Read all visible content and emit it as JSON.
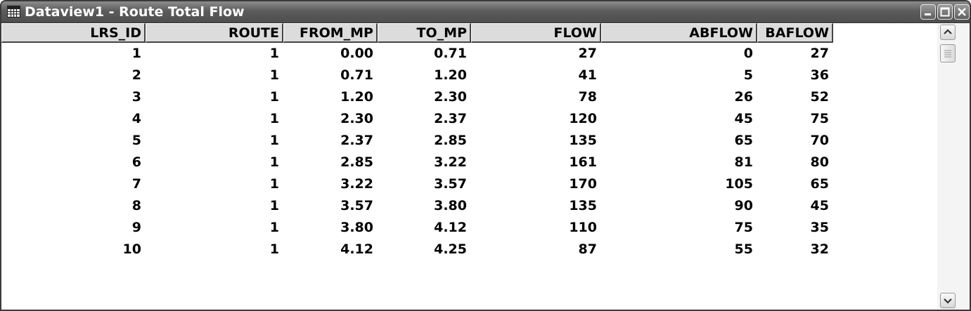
{
  "window": {
    "title": "Dataview1 - Route Total Flow",
    "icon": "table-icon",
    "controls": [
      "minimize-icon",
      "maximize-icon",
      "close-icon"
    ]
  },
  "table": {
    "columns": [
      "LRS_ID",
      "ROUTE",
      "FROM_MP",
      "TO_MP",
      "FLOW",
      "ABFLOW",
      "BAFLOW"
    ],
    "rows": [
      [
        "1",
        "1",
        "0.00",
        "0.71",
        "27",
        "0",
        "27"
      ],
      [
        "2",
        "1",
        "0.71",
        "1.20",
        "41",
        "5",
        "36"
      ],
      [
        "3",
        "1",
        "1.20",
        "2.30",
        "78",
        "26",
        "52"
      ],
      [
        "4",
        "1",
        "2.30",
        "2.37",
        "120",
        "45",
        "75"
      ],
      [
        "5",
        "1",
        "2.37",
        "2.85",
        "135",
        "65",
        "70"
      ],
      [
        "6",
        "1",
        "2.85",
        "3.22",
        "161",
        "81",
        "80"
      ],
      [
        "7",
        "1",
        "3.22",
        "3.57",
        "170",
        "105",
        "65"
      ],
      [
        "8",
        "1",
        "3.57",
        "3.80",
        "135",
        "90",
        "45"
      ],
      [
        "9",
        "1",
        "3.80",
        "4.12",
        "110",
        "75",
        "35"
      ],
      [
        "10",
        "1",
        "4.12",
        "4.25",
        "87",
        "55",
        "32"
      ]
    ]
  },
  "scrollbar": {
    "up_icon": "chevron-up-icon",
    "down_icon": "chevron-down-icon",
    "thumb_icon": "grip-icon"
  }
}
